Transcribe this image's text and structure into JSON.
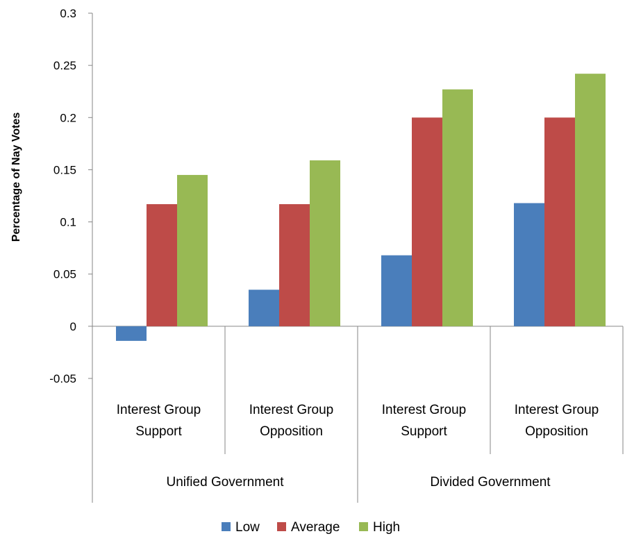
{
  "chart_data": {
    "type": "bar",
    "title": "",
    "xlabel": "",
    "ylabel": "Percentage of Nay Votes",
    "ylim": [
      -0.05,
      0.3
    ],
    "yticks": [
      "0.3",
      "0.25",
      "0.2",
      "0.15",
      "0.1",
      "0.05",
      "0",
      "-0.05"
    ],
    "ytick_values": [
      0.3,
      0.25,
      0.2,
      0.15,
      0.1,
      0.05,
      0,
      -0.05
    ],
    "categories": [
      [
        "Interest Group",
        "Support"
      ],
      [
        "Interest Group",
        "Opposition"
      ],
      [
        "Interest Group",
        "Support"
      ],
      [
        "Interest Group",
        "Opposition"
      ]
    ],
    "groups": [
      "Unified Government",
      "Divided Government"
    ],
    "series": [
      {
        "name": "Low",
        "color": "#4a7ebb",
        "values": [
          -0.014,
          0.035,
          0.068,
          0.118
        ]
      },
      {
        "name": "Average",
        "color": "#be4b48",
        "values": [
          0.117,
          0.117,
          0.2,
          0.2
        ]
      },
      {
        "name": "High",
        "color": "#98b954",
        "values": [
          0.145,
          0.159,
          0.227,
          0.242
        ]
      }
    ],
    "grid": false,
    "legend": "bottom"
  }
}
